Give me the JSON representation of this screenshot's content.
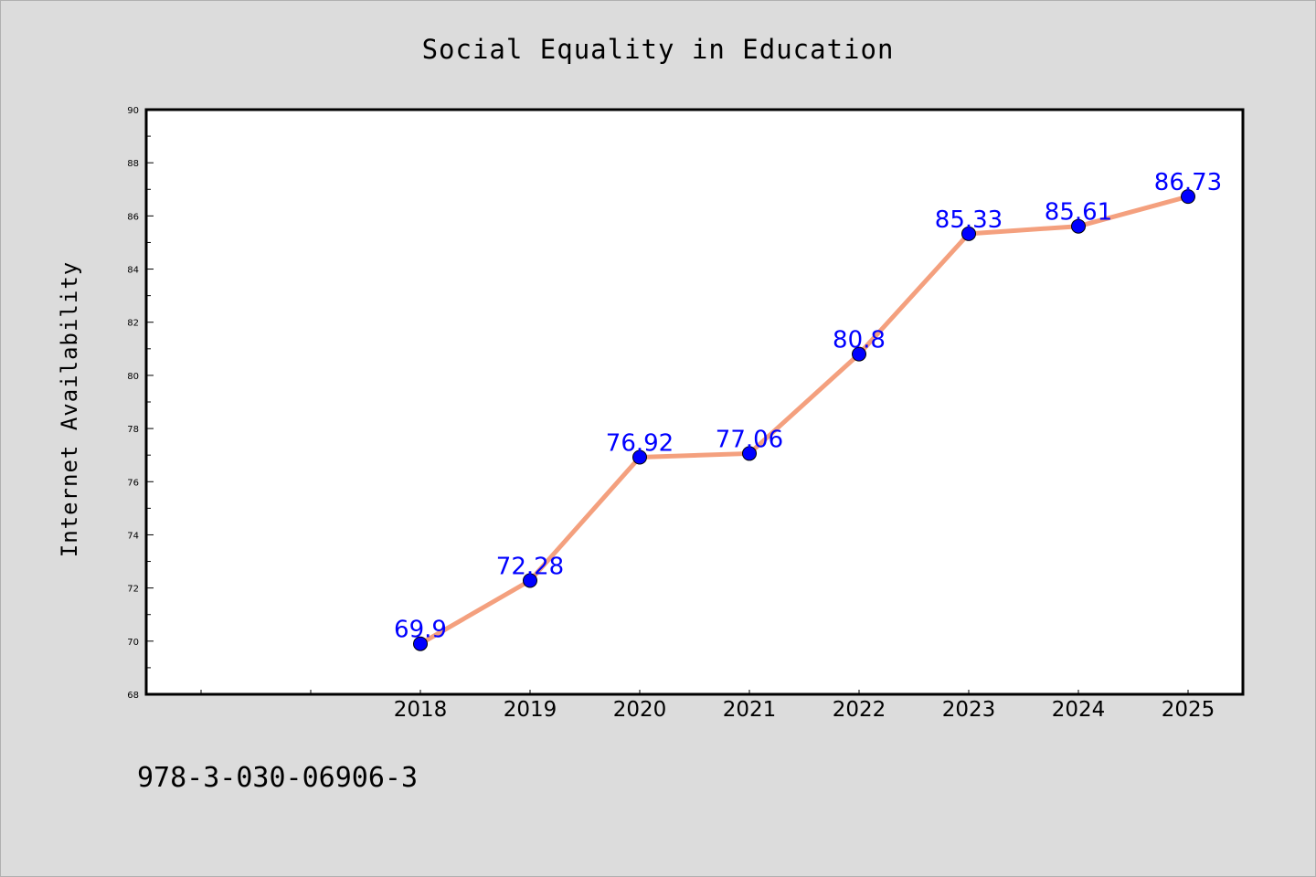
{
  "chart_data": {
    "type": "line",
    "title": "Social Equality in Education",
    "xlabel": "",
    "ylabel": "Internet Availability",
    "categories": [
      "2018",
      "2019",
      "2020",
      "2021",
      "2022",
      "2023",
      "2024",
      "2025"
    ],
    "series": [
      {
        "values": [
          69.9,
          72.28,
          76.92,
          77.06,
          80.8,
          85.33,
          85.61,
          86.73
        ],
        "line_color": "#f4a07e",
        "marker_color": "#0000ff"
      }
    ],
    "data_labels": [
      "69.9",
      "72.28",
      "76.92",
      "77.06",
      "80.8",
      "85.33",
      "85.61",
      "86.73"
    ],
    "ylim": [
      68,
      90
    ],
    "yticks": [
      "68",
      "70",
      "72",
      "74",
      "76",
      "78",
      "80",
      "82",
      "84",
      "86",
      "88",
      "90"
    ],
    "grid": false,
    "legend": "none"
  },
  "footer": {
    "isbn": "978-3-030-06906-3"
  }
}
